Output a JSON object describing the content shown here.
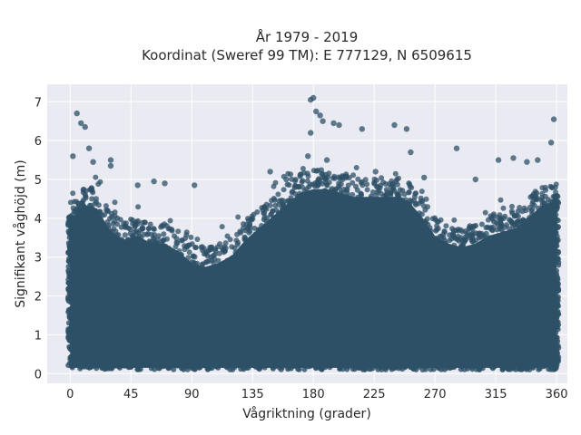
{
  "chart_data": {
    "type": "scatter",
    "title_lines": [
      "År 1979 - 2019",
      "Koordinat (Sweref 99 TM): E 777129, N 6509615"
    ],
    "xlabel": "Vågriktning (grader)",
    "ylabel": "Signifikant våghöjd (m)",
    "xlim": [
      -17,
      368
    ],
    "ylim": [
      -0.25,
      7.45
    ],
    "xticks": [
      0,
      45,
      90,
      135,
      180,
      225,
      270,
      315,
      360
    ],
    "yticks": [
      0,
      1,
      2,
      3,
      4,
      5,
      6,
      7
    ],
    "grid": true,
    "point_color": "#2d5067",
    "background_color": "#e9eaf2",
    "dense_envelope": {
      "description_x": [
        0,
        10,
        20,
        30,
        40,
        50,
        60,
        70,
        80,
        90,
        100,
        110,
        120,
        130,
        140,
        150,
        160,
        170,
        180,
        190,
        200,
        210,
        220,
        230,
        240,
        250,
        260,
        270,
        280,
        290,
        300,
        310,
        320,
        330,
        340,
        350,
        360
      ],
      "upper": [
        4.2,
        4.6,
        4.5,
        3.9,
        3.7,
        3.8,
        3.6,
        3.6,
        3.4,
        3.1,
        3.0,
        3.1,
        3.3,
        3.7,
        4.0,
        4.3,
        4.6,
        4.9,
        5.0,
        5.0,
        4.9,
        4.8,
        4.8,
        4.8,
        4.8,
        4.7,
        4.3,
        3.8,
        3.6,
        3.5,
        3.6,
        3.8,
        3.9,
        4.0,
        4.3,
        4.6,
        4.7
      ],
      "lower": 0.15
    },
    "outliers": [
      {
        "x": 2,
        "y": 5.6
      },
      {
        "x": 5,
        "y": 6.7
      },
      {
        "x": 8,
        "y": 6.45
      },
      {
        "x": 11,
        "y": 6.35
      },
      {
        "x": 14,
        "y": 5.8
      },
      {
        "x": 17,
        "y": 5.45
      },
      {
        "x": 30,
        "y": 5.5
      },
      {
        "x": 30,
        "y": 5.35
      },
      {
        "x": 62,
        "y": 4.95
      },
      {
        "x": 92,
        "y": 4.85
      },
      {
        "x": 178,
        "y": 7.05
      },
      {
        "x": 180,
        "y": 7.1
      },
      {
        "x": 182,
        "y": 6.75
      },
      {
        "x": 185,
        "y": 6.65
      },
      {
        "x": 187,
        "y": 6.5
      },
      {
        "x": 178,
        "y": 6.2
      },
      {
        "x": 195,
        "y": 6.45
      },
      {
        "x": 199,
        "y": 6.4
      },
      {
        "x": 216,
        "y": 6.3
      },
      {
        "x": 240,
        "y": 6.4
      },
      {
        "x": 249,
        "y": 6.3
      },
      {
        "x": 176,
        "y": 5.6
      },
      {
        "x": 190,
        "y": 5.5
      },
      {
        "x": 252,
        "y": 5.7
      },
      {
        "x": 286,
        "y": 5.8
      },
      {
        "x": 328,
        "y": 5.55
      },
      {
        "x": 346,
        "y": 5.5
      },
      {
        "x": 356,
        "y": 5.95
      },
      {
        "x": 358,
        "y": 6.55
      },
      {
        "x": 317,
        "y": 5.5
      },
      {
        "x": 338,
        "y": 5.45
      },
      {
        "x": 148,
        "y": 5.2
      },
      {
        "x": 160,
        "y": 5.0
      },
      {
        "x": 226,
        "y": 5.2
      },
      {
        "x": 262,
        "y": 5.05
      },
      {
        "x": 300,
        "y": 5.0
      },
      {
        "x": 50,
        "y": 4.85
      },
      {
        "x": 70,
        "y": 4.9
      }
    ]
  }
}
